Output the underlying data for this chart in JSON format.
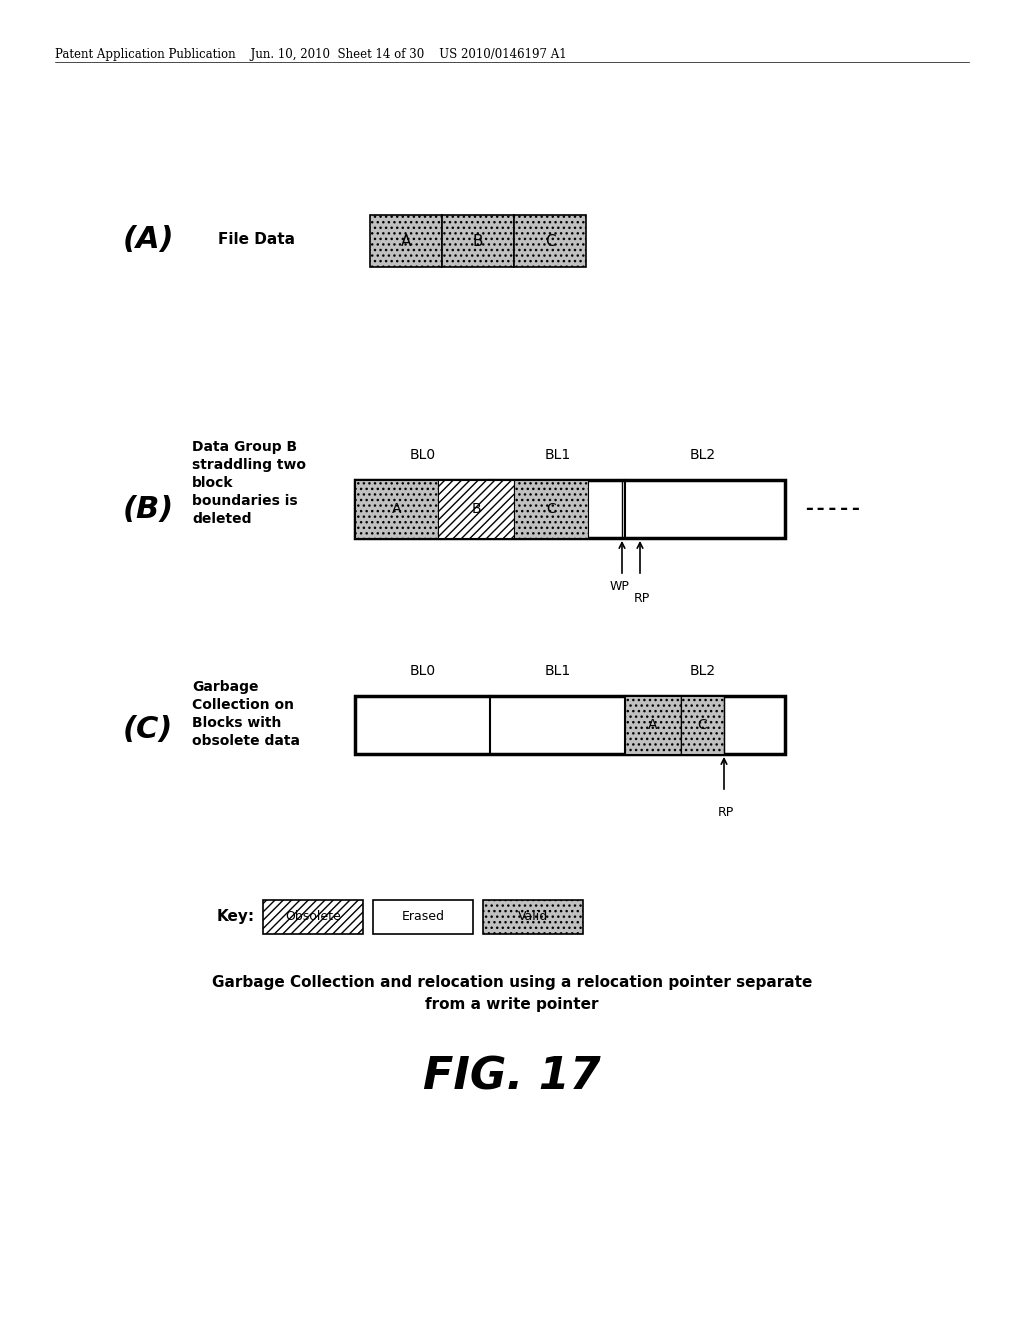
{
  "bg_color": "#ffffff",
  "header_text": "Patent Application Publication    Jun. 10, 2010  Sheet 14 of 30    US 2010/0146197 A1",
  "fig_label": "FIG. 17",
  "caption_line1": "Garbage Collection and relocation using a relocation pointer separate",
  "caption_line2": "from a write pointer",
  "section_A_label": "(A)",
  "section_A_desc": "File Data",
  "section_B_label": "(B)",
  "section_B_desc_lines": [
    "Data Group B",
    "straddling two",
    "block",
    "boundaries is",
    "deleted"
  ],
  "section_C_label": "(C)",
  "section_C_desc_lines": [
    "Garbage",
    "Collection on",
    "Blocks with",
    "obsolete data"
  ],
  "key_label": "Key:"
}
